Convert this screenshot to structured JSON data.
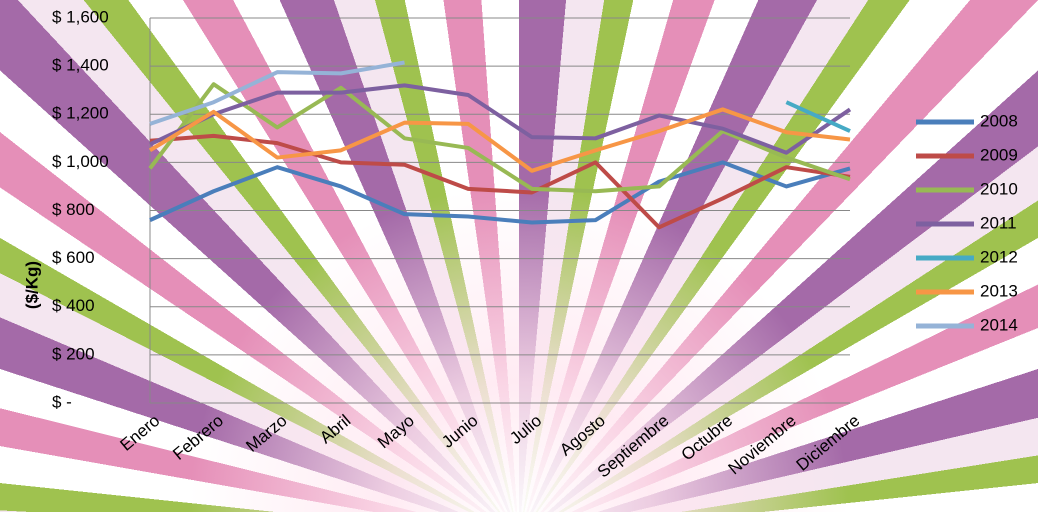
{
  "chart_data": {
    "type": "line",
    "y_label": "($/Kg)",
    "categories": [
      "Enero",
      "Febrero",
      "Marzo",
      "Abril",
      "Mayo",
      "Junio",
      "Julio",
      "Agosto",
      "Septiembre",
      "Octubre",
      "Noviembre",
      "Diciembre"
    ],
    "ylim": [
      0,
      1600
    ],
    "yticks": [
      {
        "value": 0,
        "label": "$ -"
      },
      {
        "value": 200,
        "label": "$ 200"
      },
      {
        "value": 400,
        "label": "$ 400"
      },
      {
        "value": 600,
        "label": "$ 600"
      },
      {
        "value": 800,
        "label": "$ 800"
      },
      {
        "value": 1000,
        "label": "$ 1,000"
      },
      {
        "value": 1200,
        "label": "$ 1,200"
      },
      {
        "value": 1400,
        "label": "$ 1,400"
      },
      {
        "value": 1600,
        "label": "$ 1,600"
      }
    ],
    "grid": true,
    "legend": "right",
    "series": [
      {
        "name": "2008",
        "color": "#4a7ebb",
        "values": [
          760,
          880,
          980,
          900,
          785,
          775,
          750,
          760,
          920,
          1000,
          900,
          975
        ]
      },
      {
        "name": "2009",
        "color": "#be4b48",
        "values": [
          1090,
          1110,
          1080,
          1000,
          990,
          890,
          875,
          1000,
          730,
          850,
          980,
          940
        ]
      },
      {
        "name": "2010",
        "color": "#98b954",
        "values": [
          975,
          1325,
          1145,
          1310,
          1100,
          1060,
          890,
          880,
          900,
          1130,
          1020,
          930
        ]
      },
      {
        "name": "2011",
        "color": "#7d60a0",
        "values": [
          1075,
          1200,
          1290,
          1290,
          1320,
          1280,
          1105,
          1100,
          1195,
          1140,
          1040,
          1220
        ]
      },
      {
        "name": "2012",
        "color": "#46aac5",
        "values": [
          null,
          null,
          null,
          null,
          null,
          null,
          null,
          null,
          null,
          null,
          1250,
          1130
        ]
      },
      {
        "name": "2013",
        "color": "#f79646",
        "values": [
          1050,
          1210,
          1020,
          1050,
          1165,
          1160,
          965,
          1050,
          1130,
          1220,
          1125,
          1095
        ]
      },
      {
        "name": "2014",
        "color": "#95b3d7",
        "values": [
          1160,
          1250,
          1375,
          1370,
          1415,
          null,
          null,
          null,
          null,
          null,
          null,
          null
        ]
      }
    ]
  }
}
